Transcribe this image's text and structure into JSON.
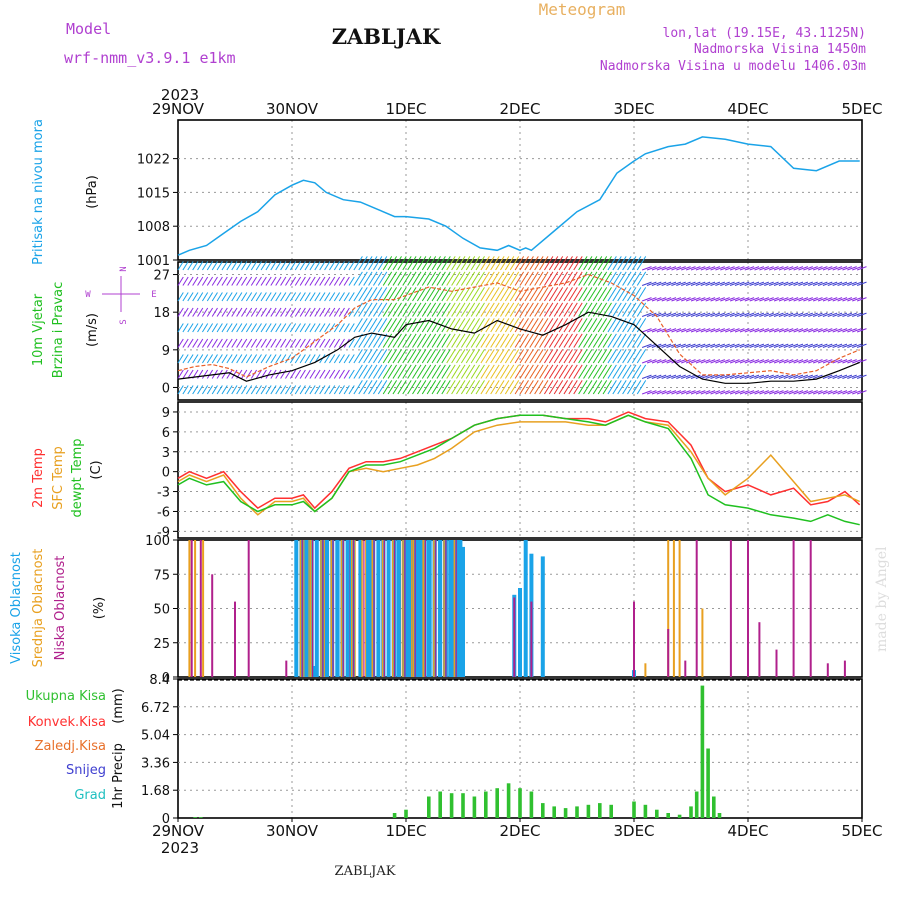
{
  "header": {
    "app_title": "Meteogram",
    "station": "ZABLJAK",
    "model_label": "Model",
    "model_name": "wrf-nmm_v3.9.1 e1km",
    "coords": "lon,lat (19.15E, 43.1125N)",
    "elevation": "Nadmorska Visina 1450m",
    "model_elevation": "Nadmorska Visina u modelu 1406.03m",
    "year_top": "2023",
    "year_bottom": "2023",
    "footer_station": "ZABLJAK",
    "credit": "made by Angel"
  },
  "colors": {
    "pressure": "#1aa3e8",
    "wind_speed": "#000000",
    "gust": "#e8602a",
    "temp_2m": "#ff3030",
    "temp_sfc": "#e8a020",
    "dewpoint": "#20c020",
    "cloud_high": "#1aa3e8",
    "cloud_mid": "#e8a020",
    "cloud_low": "#b0208c",
    "precip_total": "#30c030",
    "label_purple": "#b040d0",
    "label_orange": "#e8b060"
  },
  "x_axis": {
    "ticks": [
      "29NOV",
      "30NOV",
      "1DEC",
      "2DEC",
      "3DEC",
      "4DEC",
      "5DEC"
    ]
  },
  "chart_data": [
    {
      "type": "line",
      "panel": "pressure",
      "ylabel_main": "Pritisak na nivou mora",
      "ylabel_unit": "(hPa)",
      "ylim": [
        1001,
        1030
      ],
      "yticks": [
        "1001",
        "1008",
        "1015",
        "1022"
      ],
      "x_days": [
        0.0,
        0.1,
        0.25,
        0.4,
        0.55,
        0.7,
        0.85,
        1.0,
        1.1,
        1.2,
        1.3,
        1.45,
        1.6,
        1.75,
        1.9,
        2.0,
        2.2,
        2.35,
        2.5,
        2.65,
        2.8,
        2.9,
        3.0,
        3.05,
        3.1,
        3.3,
        3.5,
        3.7,
        3.85,
        4.0,
        4.1,
        4.3,
        4.45,
        4.6,
        4.8,
        5.0,
        5.2,
        5.4,
        5.6,
        5.8,
        5.98
      ],
      "values": [
        1002,
        1003,
        1004,
        1006.5,
        1009,
        1011,
        1014.5,
        1016.5,
        1017.5,
        1017,
        1015,
        1013.5,
        1013,
        1011.5,
        1010,
        1010,
        1009.5,
        1008,
        1005.5,
        1003.5,
        1003,
        1004,
        1003,
        1003.5,
        1003,
        1007,
        1011,
        1013.5,
        1019,
        1021.5,
        1023,
        1024.5,
        1025,
        1026.5,
        1026,
        1025,
        1024.5,
        1020,
        1019.5,
        1021.5,
        1021.5
      ],
      "series": [
        {
          "name": "Pritisak na nivou mora",
          "color": "#1aa3e8"
        }
      ],
      "grid": true
    },
    {
      "type": "line",
      "panel": "wind",
      "ylabel_main": "10m Vjetar",
      "ylabel_sub": "Brzina i Pravac",
      "ylabel_unit": "(m/s)",
      "compass": [
        "N",
        "W",
        "E",
        "S"
      ],
      "ylim": [
        -3,
        30
      ],
      "yticks": [
        "0",
        "9",
        "18",
        "27"
      ],
      "x_days": [
        0.0,
        0.15,
        0.3,
        0.45,
        0.6,
        0.8,
        1.0,
        1.2,
        1.4,
        1.55,
        1.7,
        1.9,
        2.0,
        2.2,
        2.4,
        2.6,
        2.8,
        3.0,
        3.2,
        3.4,
        3.6,
        3.8,
        4.0,
        4.2,
        4.4,
        4.6,
        4.8,
        5.0,
        5.2,
        5.4,
        5.6,
        5.8,
        5.98
      ],
      "series": [
        {
          "name": "speed",
          "color": "#000000",
          "values": [
            2,
            2.5,
            3,
            3.5,
            1.5,
            3,
            4,
            6,
            9,
            12,
            13,
            12,
            15,
            16,
            14,
            13,
            16,
            14,
            12.5,
            15,
            18,
            17,
            15,
            10,
            5,
            2,
            1,
            1,
            1.5,
            1.5,
            2,
            4,
            6
          ]
        },
        {
          "name": "gust",
          "color": "#e8602a",
          "values": [
            4,
            5,
            5.5,
            4.5,
            2.5,
            5,
            7,
            11,
            15,
            19,
            21,
            21,
            22,
            24,
            23,
            24,
            25,
            23,
            24,
            25,
            27,
            25,
            22,
            17,
            8,
            3,
            3,
            3.5,
            4,
            3,
            4,
            7,
            9
          ]
        }
      ],
      "grid": true
    },
    {
      "type": "line",
      "panel": "temperature",
      "ylabel_main": "2m Temp",
      "ylabel_sub": "SFC Temp",
      "ylabel_sub2": "dewpt Temp",
      "ylabel_unit": "(C)",
      "ylim": [
        -10,
        10.5
      ],
      "yticks": [
        "9",
        "6",
        "3",
        "0",
        "-3",
        "-6",
        "-9"
      ],
      "x_days": [
        0.0,
        0.1,
        0.25,
        0.4,
        0.55,
        0.7,
        0.85,
        1.0,
        1.1,
        1.2,
        1.35,
        1.5,
        1.65,
        1.8,
        1.95,
        2.1,
        2.25,
        2.4,
        2.6,
        2.8,
        3.0,
        3.2,
        3.4,
        3.6,
        3.75,
        3.95,
        4.1,
        4.3,
        4.5,
        4.65,
        4.8,
        5.0,
        5.2,
        5.4,
        5.55,
        5.7,
        5.85,
        5.98
      ],
      "series": [
        {
          "name": "2m Temp",
          "color": "#ff3030",
          "values": [
            -1,
            0,
            -1,
            0,
            -3,
            -5.5,
            -4,
            -4,
            -3.5,
            -5.5,
            -3,
            0.5,
            1.5,
            1.5,
            2,
            3,
            4,
            5,
            7,
            8,
            8.5,
            8.5,
            8,
            8,
            7.5,
            9,
            8,
            7.5,
            4,
            -1,
            -3,
            -2,
            -3.5,
            -2.5,
            -5,
            -4.5,
            -3,
            -5
          ]
        },
        {
          "name": "SFC Temp",
          "color": "#e8a020",
          "values": [
            -1.5,
            -0.5,
            -1.5,
            -0.5,
            -4,
            -6.5,
            -4.5,
            -4.5,
            -4,
            -6,
            -4,
            0,
            0.5,
            0,
            0.5,
            1,
            2,
            3.5,
            6,
            7,
            7.5,
            7.5,
            7.5,
            7,
            7,
            8.5,
            7.5,
            7,
            3,
            -1,
            -3.5,
            -1,
            2.5,
            -1.5,
            -4.5,
            -4,
            -3.5,
            -4.5
          ]
        },
        {
          "name": "dewpt Temp",
          "color": "#20c020",
          "values": [
            -2,
            -1,
            -2,
            -1.5,
            -4.5,
            -6,
            -5,
            -5,
            -4.5,
            -6,
            -4,
            0,
            1,
            1,
            1.5,
            2.5,
            3.5,
            5,
            7,
            8,
            8.5,
            8.5,
            8,
            7.5,
            7,
            8.5,
            7.5,
            6.5,
            2,
            -3.5,
            -5,
            -5.5,
            -6.5,
            -7,
            -7.5,
            -6.5,
            -7.5,
            -8
          ]
        }
      ],
      "grid": true
    },
    {
      "type": "bar",
      "panel": "cloudiness",
      "ylabel_main": "Visoka Oblacnost",
      "ylabel_sub": "Srednja Oblacnost",
      "ylabel_sub2": "Niska Oblacnost",
      "ylabel_unit": "(%)",
      "ylim": [
        0,
        100
      ],
      "yticks": [
        "100",
        "75",
        "50",
        "25",
        "0"
      ],
      "series": [
        {
          "name": "Visoka Oblacnost",
          "color": "#1aa3e8",
          "x_days": [
            1.1,
            1.2,
            1.3,
            1.4,
            1.5,
            1.6,
            1.7,
            1.8,
            1.9,
            2.0,
            2.05,
            2.1,
            2.15,
            2.2,
            2.25,
            2.3,
            2.35,
            2.4,
            2.45,
            2.5,
            2.95,
            3.0,
            3.05,
            3.1,
            3.2,
            4.0
          ],
          "values": [
            100,
            8,
            100,
            100,
            100,
            100,
            100,
            100,
            100,
            100,
            100,
            100,
            100,
            100,
            100,
            100,
            100,
            100,
            100,
            95,
            60,
            65,
            100,
            90,
            88,
            5
          ]
        },
        {
          "name": "Srednja Oblacnost",
          "color": "#e8a020",
          "x_days": [
            0.1,
            0.15,
            0.22,
            1.1,
            1.15,
            1.22,
            1.28,
            1.35,
            1.45,
            1.55,
            1.65,
            1.75,
            1.85,
            1.95,
            2.05,
            2.15,
            4.3,
            4.35,
            4.4,
            4.6,
            4.1
          ],
          "values": [
            100,
            100,
            100,
            100,
            100,
            100,
            100,
            100,
            100,
            100,
            100,
            100,
            100,
            100,
            100,
            100,
            100,
            100,
            100,
            50,
            10
          ]
        },
        {
          "name": "Niska Oblacnost",
          "color": "#b0208c",
          "x_days": [
            0.12,
            0.2,
            0.3,
            0.5,
            0.62,
            0.95,
            1.5,
            2.3,
            2.95,
            3.1,
            4.0,
            4.3,
            4.45,
            4.55,
            4.85,
            5.0,
            5.1,
            5.25,
            5.4,
            5.55,
            5.7,
            5.85
          ],
          "values": [
            100,
            100,
            75,
            55,
            100,
            12,
            100,
            100,
            58,
            55,
            55,
            35,
            12,
            100,
            100,
            100,
            40,
            20,
            100,
            100,
            10,
            12
          ]
        }
      ],
      "grid": true
    },
    {
      "type": "bar",
      "panel": "precipitation",
      "ylabel_main": "1hr Precip",
      "ylabel_unit": "(mm)",
      "ylim": [
        0,
        8.4
      ],
      "yticks": [
        "8.4",
        "6.72",
        "5.04",
        "3.36",
        "1.68",
        "0"
      ],
      "legend": [
        "Ukupna Kisa",
        "Konvek.Kisa",
        "Zaledj.Kisa",
        "Snijeg",
        "Grad"
      ],
      "legend_colors": [
        "#30c030",
        "#ff3030",
        "#e8702a",
        "#4040d0",
        "#20c0c0"
      ],
      "series": [
        {
          "name": "Ukupna Kisa",
          "color": "#30c030",
          "x_days": [
            0.15,
            0.2,
            1.9,
            2.0,
            2.2,
            2.3,
            2.4,
            2.5,
            2.6,
            2.7,
            2.8,
            2.9,
            3.0,
            3.1,
            3.2,
            3.3,
            3.4,
            3.5,
            3.6,
            3.7,
            3.8,
            4.0,
            4.1,
            4.2,
            4.3,
            4.4,
            4.5,
            4.55,
            4.6,
            4.65,
            4.7,
            4.75
          ],
          "values": [
            0.05,
            0.05,
            0.3,
            0.5,
            1.3,
            1.6,
            1.5,
            1.5,
            1.3,
            1.6,
            1.8,
            2.1,
            1.8,
            1.6,
            0.9,
            0.7,
            0.6,
            0.7,
            0.8,
            0.9,
            0.8,
            1.0,
            0.8,
            0.5,
            0.3,
            0.2,
            0.7,
            1.6,
            8.0,
            4.2,
            1.3,
            0.3
          ]
        }
      ],
      "grid": true
    }
  ]
}
